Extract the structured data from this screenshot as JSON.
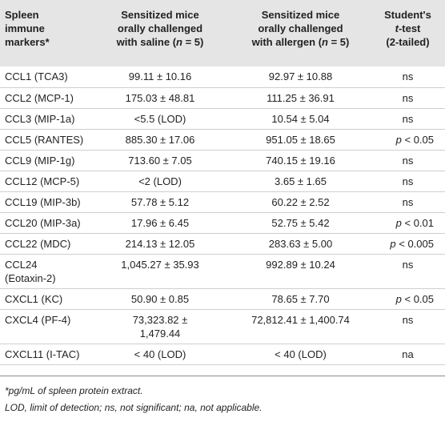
{
  "table": {
    "headers": {
      "col1": [
        "Spleen",
        "immune",
        "markers*"
      ],
      "col2": {
        "lines": [
          "Sensitized mice",
          "orally challenged"
        ],
        "last_pre": "with saline (",
        "n": "n",
        "last_post": " = 5)"
      },
      "col3": {
        "lines": [
          "Sensitized mice",
          "orally challenged"
        ],
        "last_pre": "with allergen (",
        "n": "n",
        "last_post": " = 5)"
      },
      "col4": {
        "line1": "Student's",
        "t": "t",
        "line2_post": "-test",
        "line3": "(2-tailed)"
      }
    },
    "rows": [
      {
        "marker": [
          "CCL1 (TCA3)"
        ],
        "saline": [
          "99.11 ± 10.16"
        ],
        "allergen": [
          "92.97 ± 10.88"
        ],
        "test": {
          "italic_p": false,
          "text": "ns"
        }
      },
      {
        "marker": [
          "CCL2 (MCP-1)"
        ],
        "saline": [
          "175.03 ± 48.81"
        ],
        "allergen": [
          "111.25 ± 36.91"
        ],
        "test": {
          "italic_p": false,
          "text": "ns"
        }
      },
      {
        "marker": [
          "CCL3 (MIP-1a)"
        ],
        "saline": [
          "<5.5 (LOD)"
        ],
        "allergen": [
          "10.54 ± 5.04"
        ],
        "test": {
          "italic_p": false,
          "text": "ns"
        }
      },
      {
        "marker": [
          "CCL5 (RANTES)"
        ],
        "saline": [
          "885.30 ± 17.06"
        ],
        "allergen": [
          "951.05 ± 18.65"
        ],
        "test": {
          "italic_p": true,
          "p": "p",
          "text": " < 0.05"
        }
      },
      {
        "marker": [
          "CCL9 (MIP-1g)"
        ],
        "saline": [
          "713.60 ± 7.05"
        ],
        "allergen": [
          "740.15 ± 19.16"
        ],
        "test": {
          "italic_p": false,
          "text": "ns"
        }
      },
      {
        "marker": [
          "CCL12 (MCP-5)"
        ],
        "saline": [
          "<2 (LOD)"
        ],
        "allergen": [
          "3.65 ± 1.65"
        ],
        "test": {
          "italic_p": false,
          "text": "ns"
        }
      },
      {
        "marker": [
          "CCL19 (MIP-3b)"
        ],
        "saline": [
          "57.78 ± 5.12"
        ],
        "allergen": [
          "60.22 ± 2.52"
        ],
        "test": {
          "italic_p": false,
          "text": "ns"
        }
      },
      {
        "marker": [
          "CCL20 (MIP-3a)"
        ],
        "saline": [
          "17.96 ± 6.45"
        ],
        "allergen": [
          "52.75 ± 5.42"
        ],
        "test": {
          "italic_p": true,
          "p": "p",
          "text": " < 0.01"
        }
      },
      {
        "marker": [
          "CCL22 (MDC)"
        ],
        "saline": [
          "214.13 ± 12.05"
        ],
        "allergen": [
          "283.63 ± 5.00"
        ],
        "test": {
          "italic_p": true,
          "p": "p",
          "text": " < 0.005"
        }
      },
      {
        "marker": [
          "CCL24",
          "(Eotaxin-2)"
        ],
        "saline": [
          "1,045.27 ± 35.93"
        ],
        "allergen": [
          "992.89 ± 10.24"
        ],
        "test": {
          "italic_p": false,
          "text": "ns"
        }
      },
      {
        "marker": [
          "CXCL1 (KC)"
        ],
        "saline": [
          "50.90 ± 0.85"
        ],
        "allergen": [
          "78.65 ± 7.70"
        ],
        "test": {
          "italic_p": true,
          "p": "p",
          "text": " < 0.05"
        }
      },
      {
        "marker": [
          "CXCL4 (PF-4)"
        ],
        "saline": [
          "73,323.82 ±",
          "1,479.44"
        ],
        "allergen": [
          "72,812.41 ± 1,400.74"
        ],
        "test": {
          "italic_p": false,
          "text": "ns"
        }
      },
      {
        "marker": [
          "CXCL11 (I-TAC)"
        ],
        "saline": [
          "< 40 (LOD)"
        ],
        "allergen": [
          "< 40 (LOD)"
        ],
        "test": {
          "italic_p": false,
          "text": "na"
        }
      }
    ]
  },
  "footnotes": [
    "*pg/mL of spleen protein extract.",
    "LOD, limit of detection; ns, not significant; na, not applicable."
  ]
}
